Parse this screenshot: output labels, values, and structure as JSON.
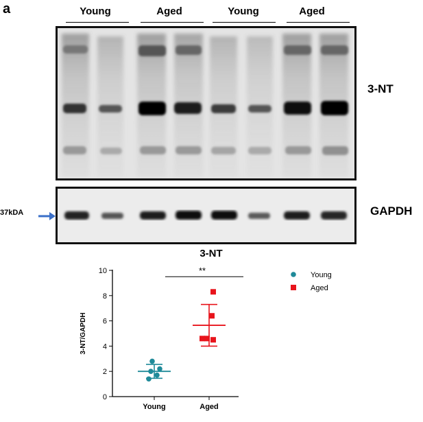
{
  "figure": {
    "panel_letter": "a",
    "lane_groups": [
      "Young",
      "Aged",
      "Young",
      "Aged"
    ],
    "blot_labels": {
      "top": "3-NT",
      "bottom": "GAPDH"
    },
    "marker_label": "37kDA"
  },
  "chart_data": {
    "type": "scatter",
    "title": "3-NT",
    "xlabel": "",
    "ylabel": "3-NT/GAPDH",
    "categories": [
      "Young",
      "Aged"
    ],
    "ylim": [
      0,
      10
    ],
    "yticks": [
      0,
      2,
      4,
      6,
      8,
      10
    ],
    "series": [
      {
        "name": "Young",
        "color": "#1f8a99",
        "marker": "circle",
        "values": [
          2.8,
          2.2,
          2.0,
          1.7,
          1.4
        ],
        "mean": 2.0,
        "sd_low": 1.45,
        "sd_high": 2.55
      },
      {
        "name": "Aged",
        "color": "#e8141c",
        "marker": "square",
        "values": [
          8.3,
          6.4,
          4.6,
          4.5,
          4.6
        ],
        "mean": 5.65,
        "sd_low": 4.0,
        "sd_high": 7.3
      }
    ],
    "annotation": {
      "text": "**",
      "y": 9.5
    },
    "legend": "top-right"
  }
}
